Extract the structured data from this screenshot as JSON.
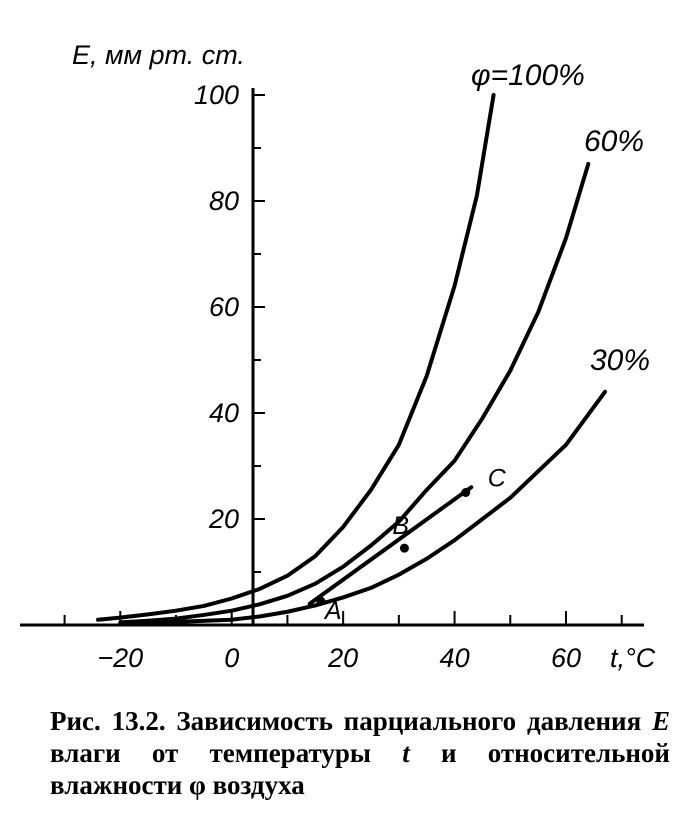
{
  "caption": {
    "prefix": "Рис. 13.2.",
    "part1": "Зависимость парциального давления",
    "var_e": "E",
    "part2": "влаги от температуры",
    "var_t": "t",
    "part3": "и относительной влажности φ воздуха"
  },
  "chart_data": {
    "type": "line",
    "title": "",
    "xlabel": "t,°C",
    "ylabel": "E, мм рт. ст.",
    "xlim": [
      -38,
      74
    ],
    "ylim": [
      0,
      100
    ],
    "x_ticks": [
      -20,
      0,
      20,
      40,
      60
    ],
    "x_tick_labels": [
      "−20",
      "0",
      "20",
      "40",
      "60"
    ],
    "x_minor_ticks": [
      -30,
      -10,
      10,
      30,
      50,
      70
    ],
    "y_ticks": [
      20,
      40,
      60,
      80,
      100
    ],
    "y_tick_labels": [
      "20",
      "40",
      "60",
      "80",
      "100"
    ],
    "grid": false,
    "legend": "none",
    "series": [
      {
        "name": "φ=100%",
        "x": [
          -24,
          -20,
          -15,
          -10,
          -5,
          0,
          5,
          10,
          15,
          20,
          25,
          30,
          35,
          40,
          44,
          47
        ],
        "values": [
          1.0,
          1.4,
          2.0,
          2.7,
          3.6,
          5.0,
          6.8,
          9.3,
          13.0,
          18.5,
          25.5,
          34.0,
          47.0,
          64.0,
          81.0,
          100.0
        ]
      },
      {
        "name": "60%",
        "x": [
          -20,
          -15,
          -10,
          -5,
          0,
          5,
          10,
          15,
          20,
          25,
          30,
          35,
          40,
          45,
          50,
          55,
          60,
          64
        ],
        "values": [
          0.5,
          0.8,
          1.2,
          1.9,
          2.7,
          3.9,
          5.5,
          7.8,
          11.0,
          15.0,
          19.5,
          25.5,
          31.0,
          39.0,
          48.0,
          59.0,
          73.0,
          87.0
        ]
      },
      {
        "name": "30%",
        "x": [
          -20,
          -10,
          0,
          5,
          10,
          15,
          20,
          25,
          30,
          35,
          40,
          45,
          50,
          55,
          60,
          67
        ],
        "values": [
          0.3,
          0.6,
          1.0,
          1.6,
          2.5,
          3.7,
          5.2,
          7.0,
          9.5,
          12.5,
          16.0,
          20.0,
          24.0,
          29.0,
          34.0,
          44.0
        ]
      }
    ],
    "segments": [
      {
        "from": "A",
        "to": "C",
        "x": [
          14,
          43
        ],
        "values": [
          4,
          26
        ]
      }
    ],
    "points": [
      {
        "label": "A",
        "x": 16,
        "y": 4.5
      },
      {
        "label": "B",
        "x": 31,
        "y": 14.5
      },
      {
        "label": "C",
        "x": 42,
        "y": 25.0
      }
    ]
  }
}
